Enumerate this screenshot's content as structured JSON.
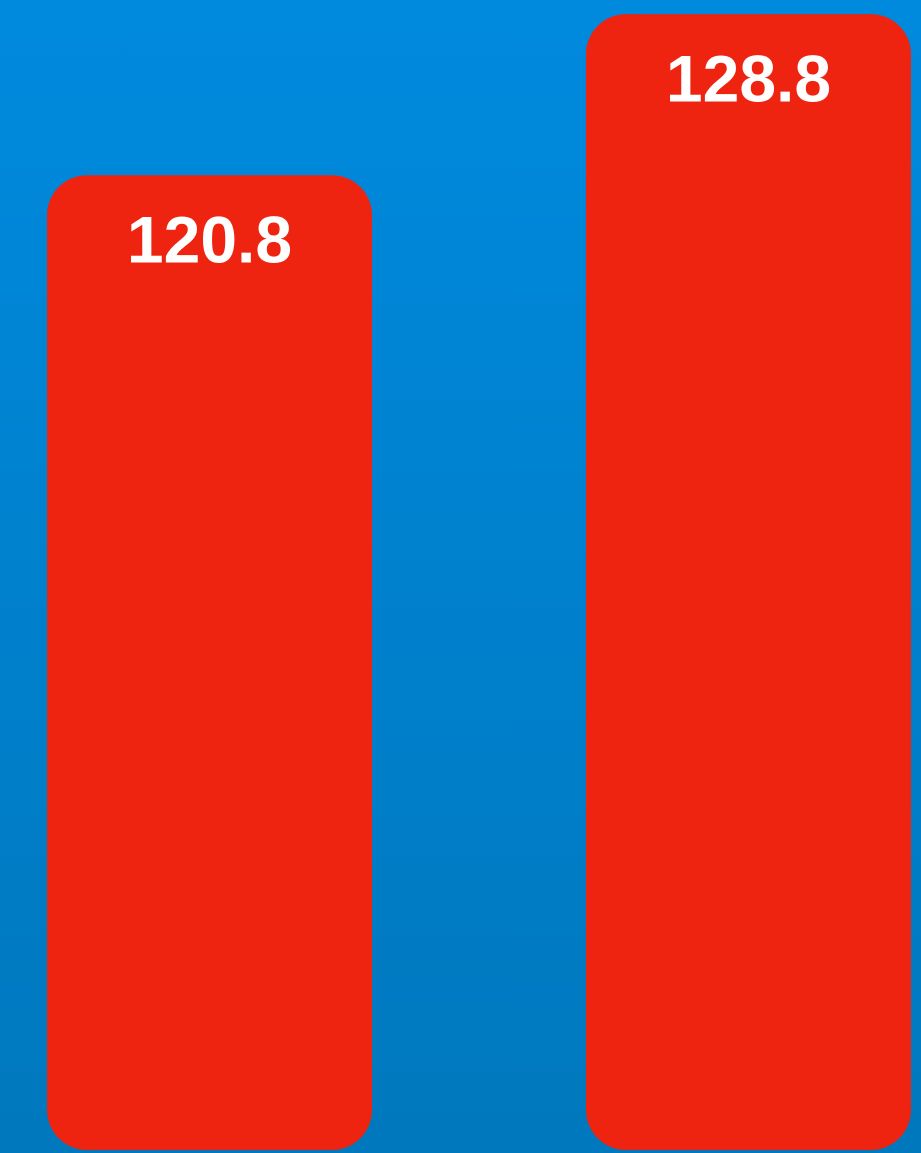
{
  "chart_data": {
    "type": "bar",
    "values": [
      120.8,
      128.8
    ],
    "color": "#ee2410",
    "ylim": [
      72.4,
      129.5
    ]
  }
}
